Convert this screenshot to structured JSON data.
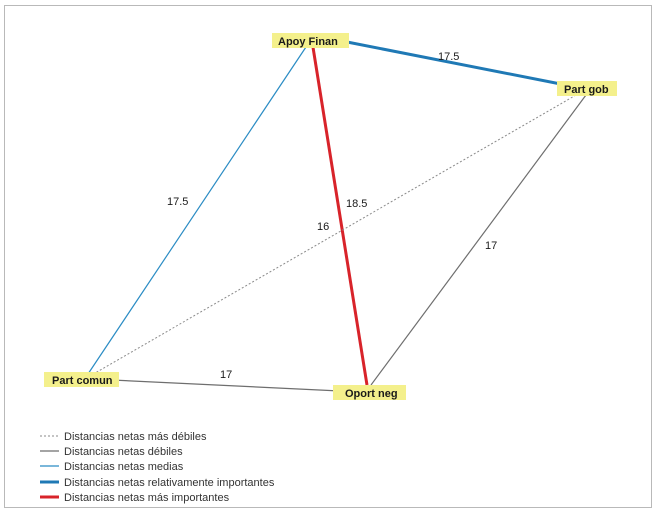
{
  "diagram": {
    "nodes": [
      {
        "id": "apoy",
        "label": "Apoy Finan"
      },
      {
        "id": "gob",
        "label": "Part gob"
      },
      {
        "id": "comun",
        "label": "Part comun"
      },
      {
        "id": "oport",
        "label": "Oport neg"
      }
    ],
    "edges": [
      {
        "id": "apoy-gob",
        "from": "apoy",
        "to": "gob",
        "value": "17.5",
        "style": "relatively-important",
        "color": "#1f79b5"
      },
      {
        "id": "apoy-comun",
        "from": "apoy",
        "to": "comun",
        "value": "17.5",
        "style": "medium",
        "color": "#2a8cc4"
      },
      {
        "id": "apoy-oport",
        "from": "apoy",
        "to": "oport",
        "value": "18.5",
        "style": "most-important",
        "color": "#d8232a"
      },
      {
        "id": "gob-comun",
        "from": "gob",
        "to": "comun",
        "value": "16",
        "style": "weakest",
        "color": "#8a8a8a"
      },
      {
        "id": "gob-oport",
        "from": "gob",
        "to": "oport",
        "value": "17",
        "style": "weak",
        "color": "#6e6e6e"
      },
      {
        "id": "comun-oport",
        "from": "comun",
        "to": "oport",
        "value": "17",
        "style": "weak",
        "color": "#6e6e6e"
      }
    ],
    "node_fill": "#f4f08c"
  },
  "legend": [
    {
      "label": "Distancias netas más débiles",
      "style": "weakest",
      "color": "#8a8a8a"
    },
    {
      "label": "Distancias netas débiles",
      "style": "weak",
      "color": "#6e6e6e"
    },
    {
      "label": "Distancias netas medias",
      "style": "medium",
      "color": "#2a8cc4"
    },
    {
      "label": "Distancias netas relativamente importantes",
      "style": "relatively-important",
      "color": "#1f79b5"
    },
    {
      "label": "Distancias netas más importantes",
      "style": "most-important",
      "color": "#d8232a"
    }
  ]
}
